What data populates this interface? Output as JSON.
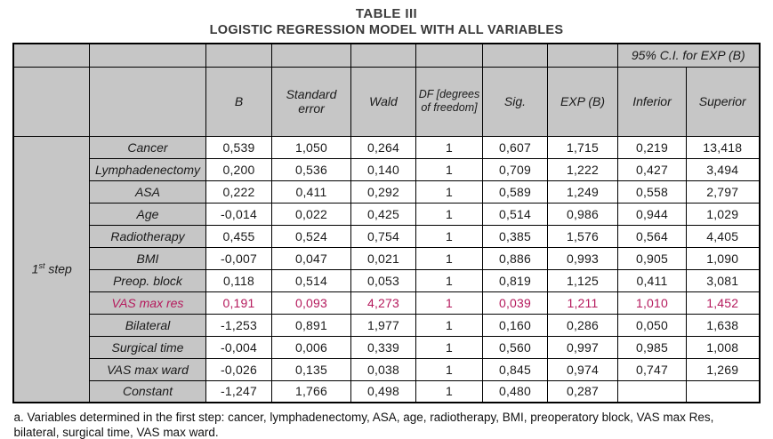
{
  "title": "TABLE III",
  "subtitle": "LOGISTIC REGRESSION MODEL WITH ALL VARIABLES",
  "table": {
    "ci_header": "95% C.I. for EXP (B)",
    "col_headers": [
      "B",
      "Standard error",
      "Wald",
      "DF [degrees of freedom]",
      "Sig.",
      "EXP (B)",
      "Inferior",
      "Superior"
    ],
    "step": {
      "num": "1",
      "sup": "st",
      "word": "step"
    },
    "rows": [
      {
        "label": "Cancer",
        "highlight": false,
        "values": [
          "0,539",
          "1,050",
          "0,264",
          "1",
          "0,607",
          "1,715",
          "0,219",
          "13,418"
        ]
      },
      {
        "label": "Lymphadenectomy",
        "highlight": false,
        "values": [
          "0,200",
          "0,536",
          "0,140",
          "1",
          "0,709",
          "1,222",
          "0,427",
          "3,494"
        ]
      },
      {
        "label": "ASA",
        "highlight": false,
        "values": [
          "0,222",
          "0,411",
          "0,292",
          "1",
          "0,589",
          "1,249",
          "0,558",
          "2,797"
        ]
      },
      {
        "label": "Age",
        "highlight": false,
        "values": [
          "-0,014",
          "0,022",
          "0,425",
          "1",
          "0,514",
          "0,986",
          "0,944",
          "1,029"
        ]
      },
      {
        "label": "Radiotherapy",
        "highlight": false,
        "values": [
          "0,455",
          "0,524",
          "0,754",
          "1",
          "0,385",
          "1,576",
          "0,564",
          "4,405"
        ]
      },
      {
        "label": "BMI",
        "highlight": false,
        "values": [
          "-0,007",
          "0,047",
          "0,021",
          "1",
          "0,886",
          "0,993",
          "0,905",
          "1,090"
        ]
      },
      {
        "label": "Preop. block",
        "highlight": false,
        "values": [
          "0,118",
          "0,514",
          "0,053",
          "1",
          "0,819",
          "1,125",
          "0,411",
          "3,081"
        ]
      },
      {
        "label": "VAS max res",
        "highlight": true,
        "values": [
          "0,191",
          "0,093",
          "4,273",
          "1",
          "0,039",
          "1,211",
          "1,010",
          "1,452"
        ]
      },
      {
        "label": "Bilateral",
        "highlight": false,
        "values": [
          "-1,253",
          "0,891",
          "1,977",
          "1",
          "0,160",
          "0,286",
          "0,050",
          "1,638"
        ]
      },
      {
        "label": "Surgical time",
        "highlight": false,
        "values": [
          "-0,004",
          "0,006",
          "0,339",
          "1",
          "0,560",
          "0,997",
          "0,985",
          "1,008"
        ]
      },
      {
        "label": "VAS max ward",
        "highlight": false,
        "values": [
          "-0,026",
          "0,135",
          "0,038",
          "1",
          "0,845",
          "0,974",
          "0,747",
          "1,269"
        ]
      },
      {
        "label": "Constant",
        "highlight": false,
        "values": [
          "-1,247",
          "1,766",
          "0,498",
          "1",
          "0,480",
          "0,287",
          "",
          ""
        ]
      }
    ]
  },
  "footnote": "a. Variables determined in the first step: cancer, lymphadenectomy, ASA, age, radiotherapy, BMI, preoperatory block, VAS max Res, bilateral, surgical time, VAS max ward.",
  "colors": {
    "highlight": "#b5195c",
    "header_bg": "#c6c6c6"
  }
}
